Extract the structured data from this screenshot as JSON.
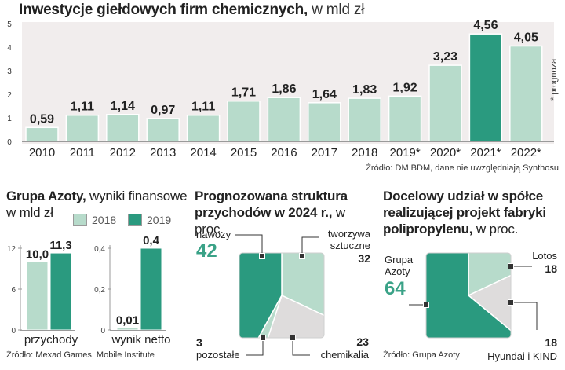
{
  "colors": {
    "light": "#b7dbcb",
    "dark": "#2a9a7f",
    "band": "#f1eded",
    "grey": "#dedcdc",
    "green_text": "#3aa287"
  },
  "main": {
    "title_bold": "Inwestycje giełdowych firm chemicznych,",
    "title_light": "w mld zł",
    "source": "Źródło: DM BDM, dane nie uwzględniają Synthosu",
    "note": "* prognoza"
  },
  "azoty": {
    "title_bold": "Grupa Azoty,",
    "title_light": "wyniki finansowe",
    "title_line2": "w mld zł",
    "legend_2018": "2018",
    "legend_2019": "2019",
    "source": "Źródło: Mexad Games, Mobile Institute"
  },
  "revenue": {
    "title_line1": "Prognozowana struktura",
    "title_line2_bold": "przychodów w 2024 r.,",
    "title_line2_light": "w proc."
  },
  "share": {
    "title_line1": "Docelowy udział w spółce",
    "title_line2": "realizującej projekt fabryki",
    "title_line3_bold": "polipropylenu,",
    "title_line3_light": "w proc.",
    "source": "Źródło: Grupa Azoty"
  },
  "chart_data": [
    {
      "type": "bar",
      "title": "Inwestycje giełdowych firm chemicznych, w mld zł",
      "categories": [
        "2010",
        "2011",
        "2012",
        "2013",
        "2014",
        "2015",
        "2016",
        "2017",
        "2018",
        "2019*",
        "2020*",
        "2021*",
        "2022*"
      ],
      "values": [
        0.59,
        1.11,
        1.14,
        0.97,
        1.11,
        1.71,
        1.86,
        1.64,
        1.83,
        1.92,
        3.23,
        4.56,
        4.05
      ],
      "labels": [
        "0,59",
        "1,11",
        "1,14",
        "0,97",
        "1,11",
        "1,71",
        "1,86",
        "1,64",
        "1,83",
        "1,92",
        "3,23",
        "4,56",
        "4,05"
      ],
      "highlight": "2021*",
      "ylim": [
        0,
        5
      ],
      "yticks": [
        "0",
        "1",
        "2",
        "3",
        "4",
        "5"
      ],
      "grid": false
    },
    {
      "type": "bar",
      "title": "Grupa Azoty, wyniki finansowe w mld zł",
      "panels": [
        {
          "category": "przychody",
          "ylim": [
            0,
            12
          ],
          "yticks": [
            "0",
            "6",
            "12"
          ],
          "series": [
            {
              "name": "2018",
              "value": 10.0,
              "label": "10,0"
            },
            {
              "name": "2019",
              "value": 11.3,
              "label": "11,3"
            }
          ]
        },
        {
          "category": "wynik netto",
          "ylim": [
            0,
            0.4
          ],
          "yticks": [
            "0",
            "0,2",
            "0,4"
          ],
          "series": [
            {
              "name": "2018",
              "value": 0.01,
              "label": "0,01"
            },
            {
              "name": "2019",
              "value": 0.4,
              "label": "0,4"
            }
          ]
        }
      ]
    },
    {
      "type": "pie",
      "title": "Prognozowana struktura przychodów w 2024 r., w proc.",
      "slices": [
        {
          "name": "nawozy",
          "value": 42,
          "label": "42"
        },
        {
          "name": "tworzywa sztuczne",
          "value": 32,
          "label": "32"
        },
        {
          "name": "chemikalia",
          "value": 23,
          "label": "23"
        },
        {
          "name": "pozostałe",
          "value": 3,
          "label": "3"
        }
      ]
    },
    {
      "type": "pie",
      "title": "Docelowy udział w spółce realizującej projekt fabryki polipropylenu, w proc.",
      "slices": [
        {
          "name": "Grupa Azoty",
          "value": 64,
          "label": "64"
        },
        {
          "name": "Lotos",
          "value": 18,
          "label": "18"
        },
        {
          "name": "Hyundai i KIND",
          "value": 18,
          "label": "18"
        }
      ]
    }
  ]
}
